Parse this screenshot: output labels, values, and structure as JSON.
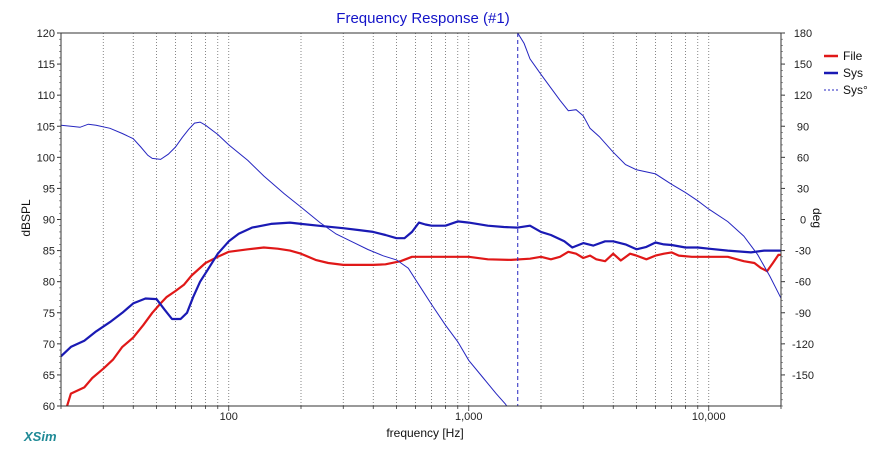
{
  "app": {
    "brand": "XSim"
  },
  "chart_data": {
    "type": "line",
    "title": "Frequency Response (#1)",
    "xlabel": "frequency [Hz]",
    "ylabel": "dBSPL",
    "y2label": "deg",
    "xscale": "log",
    "xlim": [
      20,
      20000
    ],
    "ylim": [
      60,
      120
    ],
    "y2lim": [
      -180,
      180
    ],
    "x_tick_labels": [
      {
        "value": 100,
        "label": "100"
      },
      {
        "value": 1000,
        "label": "1,000"
      },
      {
        "value": 10000,
        "label": "10,000"
      }
    ],
    "y_ticks": [
      60,
      65,
      70,
      75,
      80,
      85,
      90,
      95,
      100,
      105,
      110,
      115,
      120
    ],
    "y2_ticks": [
      -150,
      -120,
      -90,
      -60,
      -30,
      0,
      30,
      60,
      90,
      120,
      150,
      180
    ],
    "grid": true,
    "legend_position": "top-right",
    "series": [
      {
        "name": "File",
        "axis": "left",
        "color": "#e01818",
        "style": "solid",
        "points": [
          [
            21,
            59.5
          ],
          [
            22,
            62
          ],
          [
            25,
            63
          ],
          [
            27,
            64.5
          ],
          [
            30,
            66
          ],
          [
            33,
            67.5
          ],
          [
            36,
            69.5
          ],
          [
            40,
            71
          ],
          [
            44,
            73
          ],
          [
            48,
            75
          ],
          [
            52,
            76.5
          ],
          [
            55,
            77.5
          ],
          [
            60,
            78.5
          ],
          [
            65,
            79.5
          ],
          [
            70,
            81
          ],
          [
            80,
            83
          ],
          [
            90,
            84
          ],
          [
            100,
            84.8
          ],
          [
            120,
            85.2
          ],
          [
            140,
            85.5
          ],
          [
            160,
            85.3
          ],
          [
            180,
            85
          ],
          [
            200,
            84.5
          ],
          [
            230,
            83.5
          ],
          [
            260,
            83
          ],
          [
            300,
            82.7
          ],
          [
            350,
            82.7
          ],
          [
            400,
            82.7
          ],
          [
            450,
            82.8
          ],
          [
            520,
            83.3
          ],
          [
            580,
            84
          ],
          [
            650,
            84
          ],
          [
            800,
            84
          ],
          [
            1000,
            84
          ],
          [
            1200,
            83.6
          ],
          [
            1500,
            83.5
          ],
          [
            1800,
            83.7
          ],
          [
            2000,
            84
          ],
          [
            2200,
            83.6
          ],
          [
            2400,
            84
          ],
          [
            2600,
            84.8
          ],
          [
            2800,
            84.5
          ],
          [
            3000,
            83.8
          ],
          [
            3200,
            84.2
          ],
          [
            3400,
            83.6
          ],
          [
            3700,
            83.3
          ],
          [
            4000,
            84.5
          ],
          [
            4300,
            83.4
          ],
          [
            4700,
            84.5
          ],
          [
            5000,
            84.2
          ],
          [
            5500,
            83.6
          ],
          [
            6000,
            84.2
          ],
          [
            6500,
            84.5
          ],
          [
            7000,
            84.7
          ],
          [
            7500,
            84.2
          ],
          [
            8500,
            84
          ],
          [
            10000,
            84
          ],
          [
            12000,
            84
          ],
          [
            14000,
            83.3
          ],
          [
            15500,
            83
          ],
          [
            16500,
            82.2
          ],
          [
            17500,
            81.7
          ],
          [
            18500,
            83
          ],
          [
            19500,
            84.3
          ],
          [
            20000,
            84.3
          ]
        ]
      },
      {
        "name": "Sys",
        "axis": "left",
        "color": "#1a1ab4",
        "style": "solid",
        "points": [
          [
            20,
            68
          ],
          [
            22,
            69.5
          ],
          [
            25,
            70.5
          ],
          [
            28,
            72
          ],
          [
            32,
            73.5
          ],
          [
            36,
            75
          ],
          [
            40,
            76.5
          ],
          [
            45,
            77.3
          ],
          [
            50,
            77.2
          ],
          [
            54,
            75.5
          ],
          [
            58,
            74
          ],
          [
            63,
            74
          ],
          [
            67,
            75
          ],
          [
            71,
            77.5
          ],
          [
            76,
            80
          ],
          [
            82,
            82
          ],
          [
            90,
            84.5
          ],
          [
            100,
            86.5
          ],
          [
            110,
            87.7
          ],
          [
            125,
            88.7
          ],
          [
            150,
            89.3
          ],
          [
            180,
            89.5
          ],
          [
            200,
            89.3
          ],
          [
            250,
            88.9
          ],
          [
            300,
            88.6
          ],
          [
            350,
            88.3
          ],
          [
            400,
            88
          ],
          [
            450,
            87.5
          ],
          [
            500,
            87
          ],
          [
            540,
            87
          ],
          [
            580,
            88
          ],
          [
            620,
            89.5
          ],
          [
            660,
            89.2
          ],
          [
            700,
            89
          ],
          [
            800,
            89
          ],
          [
            900,
            89.7
          ],
          [
            1000,
            89.5
          ],
          [
            1200,
            89
          ],
          [
            1400,
            88.8
          ],
          [
            1600,
            88.7
          ],
          [
            1800,
            89
          ],
          [
            2000,
            88
          ],
          [
            2200,
            87.5
          ],
          [
            2500,
            86.5
          ],
          [
            2700,
            85.5
          ],
          [
            3000,
            86.2
          ],
          [
            3300,
            85.8
          ],
          [
            3700,
            86.5
          ],
          [
            4000,
            86.5
          ],
          [
            4500,
            86
          ],
          [
            5000,
            85.2
          ],
          [
            5500,
            85.6
          ],
          [
            6000,
            86.3
          ],
          [
            6500,
            86
          ],
          [
            7000,
            85.9
          ],
          [
            8000,
            85.5
          ],
          [
            9000,
            85.5
          ],
          [
            10000,
            85.3
          ],
          [
            12000,
            85
          ],
          [
            15000,
            84.7
          ],
          [
            17000,
            85
          ],
          [
            20000,
            85
          ]
        ]
      },
      {
        "name": "Sys°",
        "axis": "right",
        "color": "#2525c0",
        "style": "thin",
        "segments": [
          [
            [
              20,
              91
            ],
            [
              22,
              90
            ],
            [
              24,
              89
            ],
            [
              26,
              92
            ],
            [
              28,
              91
            ],
            [
              32,
              88
            ],
            [
              36,
              83
            ],
            [
              40,
              78
            ],
            [
              43,
              70
            ],
            [
              46,
              62
            ],
            [
              48,
              59
            ],
            [
              52,
              58
            ],
            [
              56,
              63
            ],
            [
              60,
              70
            ],
            [
              64,
              79
            ],
            [
              68,
              87
            ],
            [
              72,
              93
            ],
            [
              76,
              94
            ],
            [
              80,
              91
            ],
            [
              90,
              82
            ],
            [
              100,
              72
            ],
            [
              120,
              57
            ],
            [
              140,
              42
            ],
            [
              170,
              25
            ],
            [
              200,
              12
            ],
            [
              240,
              -3
            ],
            [
              280,
              -14
            ],
            [
              330,
              -22
            ],
            [
              380,
              -29
            ],
            [
              440,
              -35
            ],
            [
              500,
              -39
            ],
            [
              560,
              -47
            ],
            [
              620,
              -63
            ],
            [
              700,
              -82
            ],
            [
              800,
              -102
            ],
            [
              900,
              -118
            ],
            [
              1000,
              -136
            ],
            [
              1150,
              -153
            ],
            [
              1300,
              -168
            ],
            [
              1420,
              -178
            ],
            [
              1500,
              -186
            ]
          ],
          [
            [
              1600,
              180
            ],
            [
              1700,
              170
            ],
            [
              1800,
              155
            ],
            [
              2000,
              140
            ],
            [
              2200,
              127
            ],
            [
              2400,
              115
            ],
            [
              2600,
              105
            ],
            [
              2800,
              106
            ],
            [
              3000,
              100
            ],
            [
              3200,
              88
            ],
            [
              3500,
              80
            ],
            [
              4000,
              65
            ],
            [
              4500,
              53
            ],
            [
              5000,
              48
            ],
            [
              6000,
              44
            ],
            [
              7000,
              34
            ],
            [
              8000,
              26
            ],
            [
              9000,
              18
            ],
            [
              10000,
              10
            ],
            [
              12000,
              -2
            ],
            [
              14000,
              -16
            ],
            [
              16000,
              -34
            ],
            [
              18000,
              -55
            ],
            [
              20000,
              -76
            ]
          ]
        ]
      }
    ]
  }
}
